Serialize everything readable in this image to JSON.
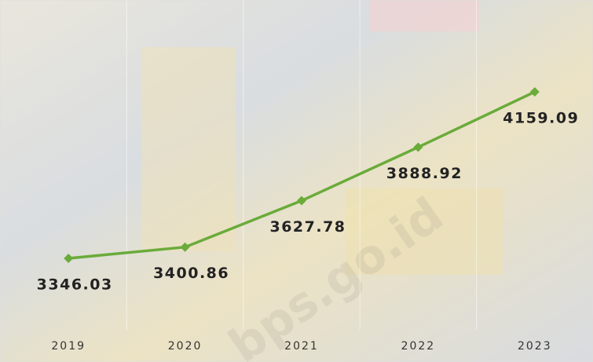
{
  "chart_data": {
    "type": "line",
    "categories": [
      "2019",
      "2020",
      "2021",
      "2022",
      "2023"
    ],
    "series": [
      {
        "color": "#6aab3a",
        "values": [
          3346.03,
          3400.86,
          3627.78,
          3888.92,
          4159.09
        ]
      }
    ],
    "watermark": "bps.go.id"
  }
}
